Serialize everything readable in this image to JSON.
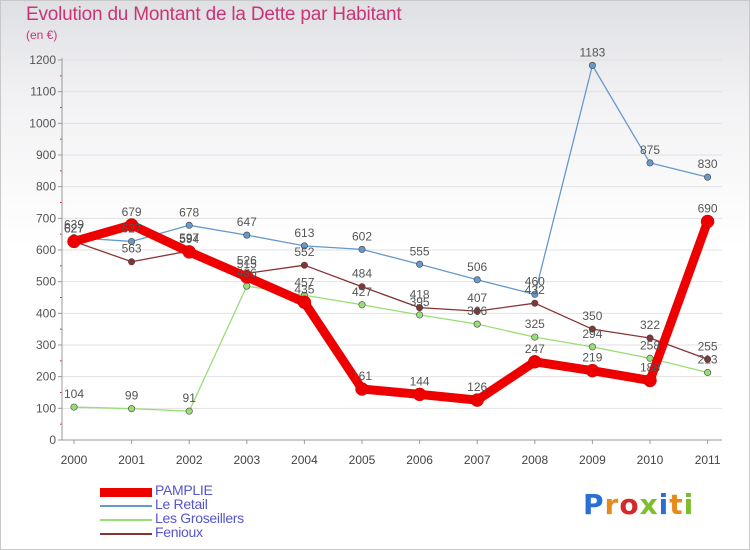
{
  "chart_data": {
    "type": "line",
    "title": "Evolution du Montant de la Dette par Habitant",
    "unit_label": "(en €)",
    "x": [
      "2000",
      "2001",
      "2002",
      "2003",
      "2004",
      "2005",
      "2006",
      "2007",
      "2008",
      "2009",
      "2010",
      "2011"
    ],
    "ylim": [
      0,
      1200
    ],
    "yticks": [
      "0",
      "100",
      "200",
      "300",
      "400",
      "500",
      "600",
      "700",
      "800",
      "900",
      "1000",
      "1100",
      "1200"
    ],
    "grid": "horizontal",
    "legend_position": "bottom-left",
    "series": [
      {
        "name": "PAMPLIE",
        "color": "#ee0000",
        "values": [
          627,
          679,
          594,
          515,
          435,
          161,
          144,
          126,
          247,
          219,
          188,
          690
        ]
      },
      {
        "name": "Le Retail",
        "color": "#6699cc",
        "values": [
          639,
          627,
          678,
          647,
          613,
          602,
          555,
          506,
          460,
          1183,
          875,
          830
        ]
      },
      {
        "name": "Les Groseillers",
        "color": "#99dd77",
        "values": [
          104,
          99,
          91,
          486,
          457,
          427,
          395,
          366,
          325,
          294,
          258,
          213
        ]
      },
      {
        "name": "Fenioux",
        "color": "#883333",
        "values": [
          627,
          563,
          597,
          526,
          552,
          484,
          418,
          407,
          432,
          350,
          322,
          255
        ]
      }
    ]
  },
  "brand": {
    "text": "Proxiti",
    "letter_colors": [
      "#2a6fd6",
      "#e88a1a",
      "#d62a2a",
      "#7bbf2a",
      "#2a6fd6",
      "#e88a1a",
      "#7bbf2a"
    ]
  }
}
